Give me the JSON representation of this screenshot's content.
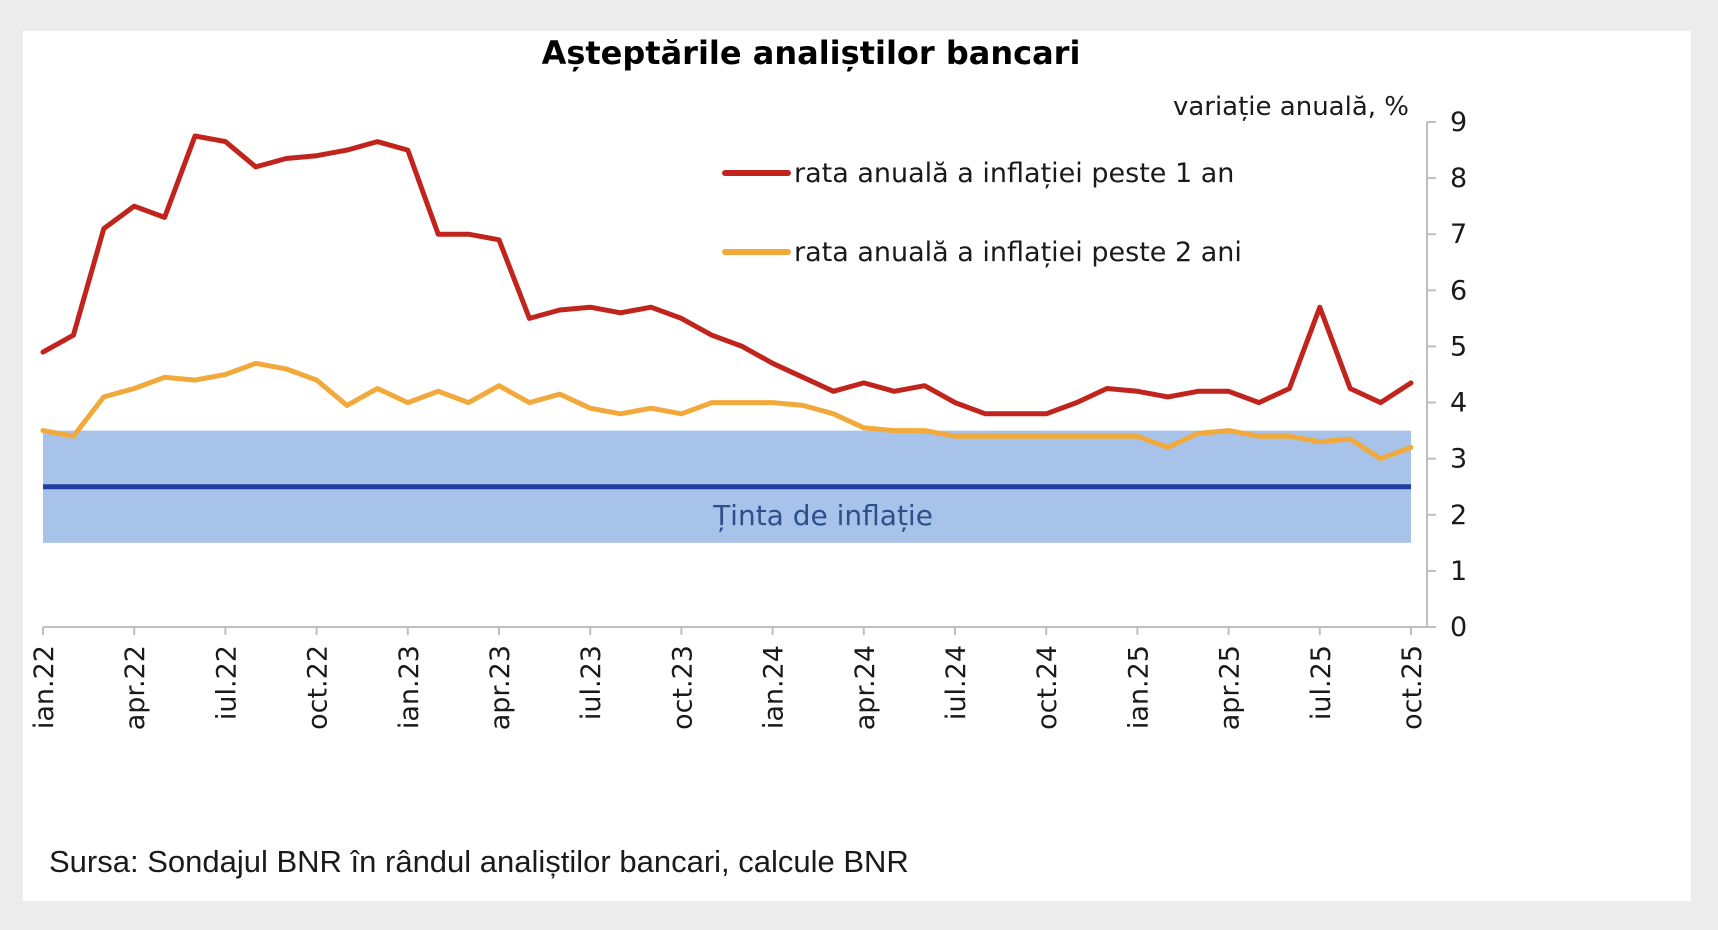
{
  "chart_data": {
    "type": "line",
    "title": "Așteptările analiștilor bancari",
    "ylabel": "variație anuală, %",
    "ylim": [
      0,
      9
    ],
    "yticks": [
      0,
      1,
      2,
      3,
      4,
      5,
      6,
      7,
      8,
      9
    ],
    "y_axis_side": "right",
    "categories": [
      "ian.22",
      "feb.22",
      "mar.22",
      "apr.22",
      "mai.22",
      "iun.22",
      "iul.22",
      "aug.22",
      "sep.22",
      "oct.22",
      "nov.22",
      "dec.22",
      "ian.23",
      "feb.23",
      "mar.23",
      "apr.23",
      "mai.23",
      "iun.23",
      "iul.23",
      "aug.23",
      "sep.23",
      "oct.23",
      "nov.23",
      "dec.23",
      "ian.24",
      "feb.24",
      "mar.24",
      "apr.24",
      "mai.24",
      "iun.24",
      "iul.24",
      "aug.24",
      "sep.24",
      "oct.24",
      "nov.24",
      "dec.24",
      "ian.25",
      "feb.25",
      "mar.25",
      "apr.25",
      "mai.25",
      "iun.25",
      "iul.25",
      "aug.25",
      "sep.25",
      "oct.25"
    ],
    "tick_labels": [
      "ian.22",
      "apr.22",
      "iul.22",
      "oct.22",
      "ian.23",
      "apr.23",
      "iul.23",
      "oct.23",
      "ian.24",
      "apr.24",
      "iul.24",
      "oct.24",
      "ian.25",
      "apr.25",
      "iul.25",
      "oct.25"
    ],
    "series": [
      {
        "name": "rata anuală a inflației peste 1 an",
        "color": "#c0241c",
        "values": [
          4.9,
          5.2,
          7.1,
          7.5,
          7.3,
          8.75,
          8.65,
          8.2,
          8.35,
          8.4,
          8.5,
          8.65,
          8.5,
          7.0,
          7.0,
          6.9,
          5.5,
          5.65,
          5.7,
          5.6,
          5.7,
          5.5,
          5.2,
          5.0,
          4.7,
          4.45,
          4.2,
          4.35,
          4.2,
          4.3,
          4.0,
          3.8,
          3.8,
          3.8,
          4.0,
          4.25,
          4.2,
          4.1,
          4.2,
          4.2,
          4.0,
          4.25,
          5.7,
          4.25,
          4.0,
          4.35
        ]
      },
      {
        "name": "rata anuală a inflației peste 2 ani",
        "color": "#f2a93b",
        "values": [
          3.5,
          3.4,
          4.1,
          4.25,
          4.45,
          4.4,
          4.5,
          4.7,
          4.6,
          4.4,
          3.95,
          4.25,
          4.0,
          4.2,
          4.0,
          4.3,
          4.0,
          4.15,
          3.9,
          3.8,
          3.9,
          3.8,
          4.0,
          4.0,
          4.0,
          3.95,
          3.8,
          3.55,
          3.5,
          3.5,
          3.4,
          3.4,
          3.4,
          3.4,
          3.4,
          3.4,
          3.4,
          3.2,
          3.45,
          3.5,
          3.4,
          3.4,
          3.3,
          3.35,
          3.0,
          3.2
        ]
      }
    ],
    "target": {
      "label": "Ținta de inflație",
      "value": 2.5,
      "band": [
        1.5,
        3.5
      ],
      "line_color": "#1f3f9e",
      "band_color": "#a8c3ea"
    },
    "legend_position": "top-center"
  },
  "source": "Sursa: Sondajul BNR în rândul analiștilor bancari, calcule BNR"
}
